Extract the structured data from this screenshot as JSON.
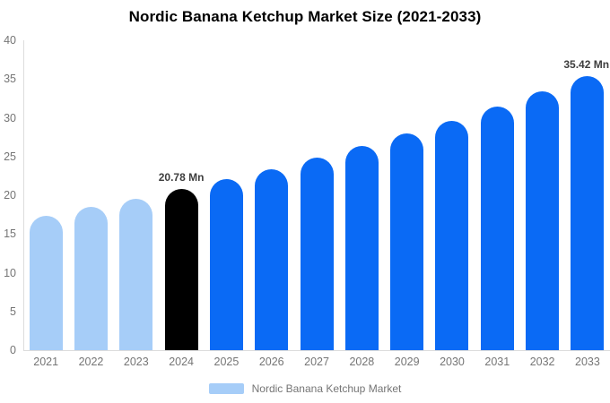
{
  "colors": {
    "background": "#ffffff",
    "historical_bar": "#a6cdf8",
    "base_year_bar": "#000000",
    "forecast_bar": "#0a6af5",
    "axis_line": "#dcdcdc",
    "tick_text": "#757575",
    "data_label_text": "#3d3d3d",
    "title_text": "#000000"
  },
  "chart_data": {
    "type": "bar",
    "title": "Nordic Banana Ketchup Market Size (2021-2033)",
    "xlabel": "",
    "ylabel": "",
    "unit": "Mn",
    "ylim": [
      0,
      40
    ],
    "yticks": [
      0,
      5,
      10,
      15,
      20,
      25,
      30,
      35,
      40
    ],
    "grid": false,
    "categories": [
      "2021",
      "2022",
      "2023",
      "2024",
      "2025",
      "2026",
      "2027",
      "2028",
      "2029",
      "2030",
      "2031",
      "2032",
      "2033"
    ],
    "values": [
      17.4,
      18.46,
      19.59,
      20.78,
      22.05,
      23.4,
      24.82,
      26.33,
      27.94,
      29.64,
      31.45,
      33.37,
      35.42
    ],
    "bar_colors": [
      "#a6cdf8",
      "#a6cdf8",
      "#a6cdf8",
      "#000000",
      "#0a6af5",
      "#0a6af5",
      "#0a6af5",
      "#0a6af5",
      "#0a6af5",
      "#0a6af5",
      "#0a6af5",
      "#0a6af5",
      "#0a6af5"
    ],
    "data_labels": [
      {
        "category": "2024",
        "text": "20.78 Mn"
      },
      {
        "category": "2033",
        "text": "35.42 Mn"
      }
    ],
    "legend": {
      "position": "bottom",
      "entries": [
        {
          "label": "Nordic Banana Ketchup Market",
          "color": "#a6cdf8"
        }
      ]
    }
  }
}
